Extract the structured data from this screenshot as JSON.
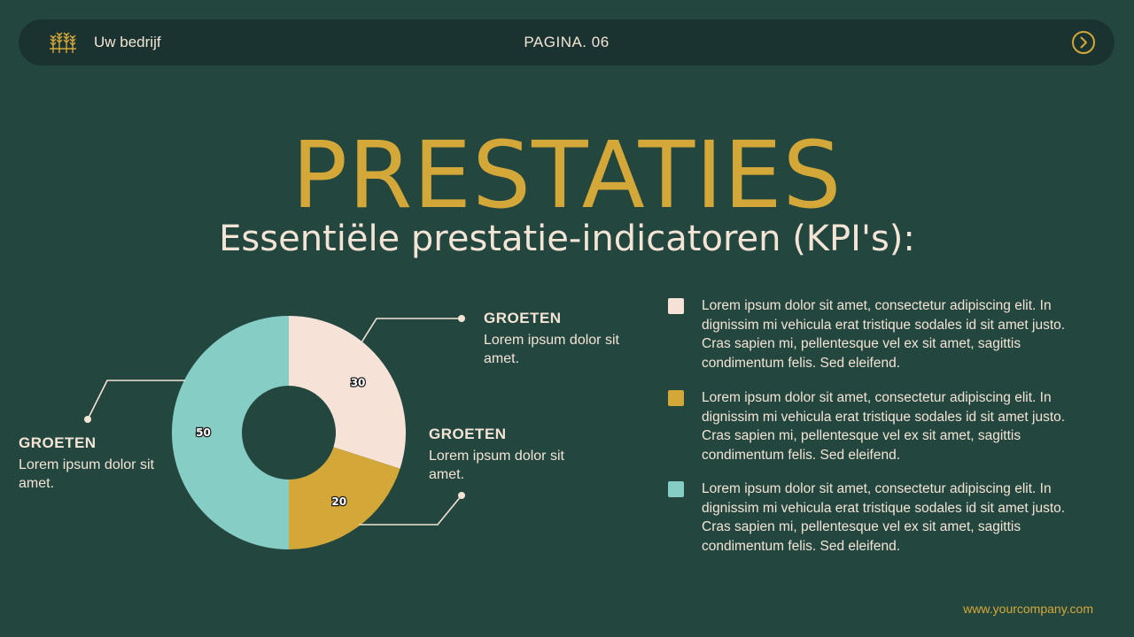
{
  "header": {
    "company": "Uw bedrijf",
    "page": "PAGINA. 06",
    "logo_icon": "wheat-icon",
    "next_icon": "chevron-right-circle-icon"
  },
  "title": "PRESTATIES",
  "subtitle": "Essentiële prestatie-indicatoren (KPI's):",
  "colors": {
    "background": "#23463f",
    "bar": "#1b3330",
    "gold": "#d4a838",
    "cream": "#f7e2d8",
    "teal": "#86cdc6",
    "text": "#f3e4d6"
  },
  "chart_data": {
    "type": "pie",
    "donut": true,
    "categories": [
      "",
      "",
      ""
    ],
    "values": [
      30,
      20,
      50
    ],
    "colors": [
      "#f7e2d8",
      "#d4a838",
      "#86cdc6"
    ],
    "data_labels": [
      "30",
      "20",
      "50"
    ],
    "title": "",
    "legend": "right"
  },
  "callouts": [
    {
      "head": "GROETEN",
      "text": "Lorem ipsum dolor sit amet."
    },
    {
      "head": "GROETEN",
      "text": "Lorem ipsum dolor sit amet."
    },
    {
      "head": "GROETEN",
      "text": "Lorem ipsum dolor sit amet."
    }
  ],
  "legend": [
    {
      "color": "#f7e2d8",
      "text": "Lorem ipsum dolor sit amet, consectetur adipiscing elit. In dignissim mi vehicula erat tristique sodales id sit amet justo. Cras sapien mi, pellentesque vel ex sit amet, sagittis condimentum felis. Sed eleifend."
    },
    {
      "color": "#d4a838",
      "text": "Lorem ipsum dolor sit amet, consectetur adipiscing elit. In dignissim mi vehicula erat tristique sodales id sit amet justo. Cras sapien mi, pellentesque vel ex sit amet, sagittis condimentum felis. Sed eleifend."
    },
    {
      "color": "#86cdc6",
      "text": "Lorem ipsum dolor sit amet, consectetur adipiscing elit. In dignissim mi vehicula erat tristique sodales id sit amet justo. Cras sapien mi, pellentesque vel ex sit amet, sagittis condimentum felis. Sed eleifend."
    }
  ],
  "website": "www.yourcompany.com"
}
